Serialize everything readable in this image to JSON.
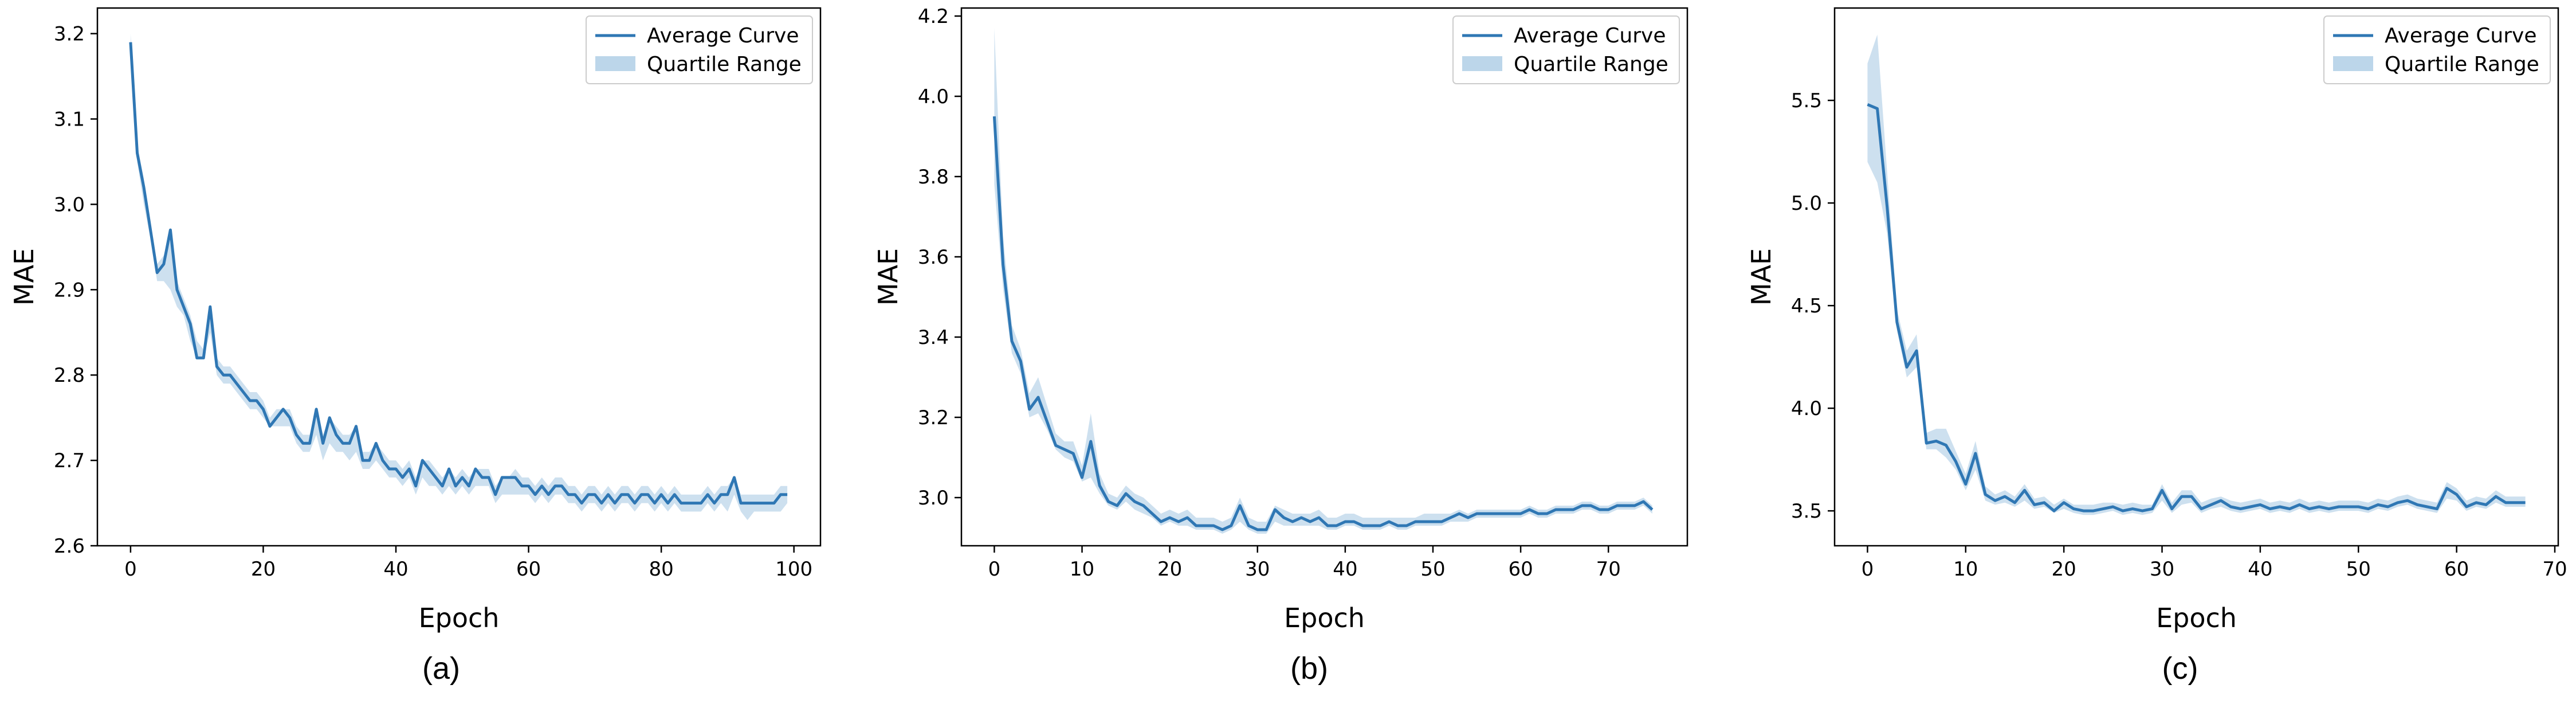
{
  "chart_data": [
    {
      "type": "line",
      "caption": "(a)",
      "xlabel": "Epoch",
      "ylabel": "MAE",
      "xlim": [
        -5,
        104
      ],
      "ylim": [
        2.6,
        3.23
      ],
      "xticks": [
        0,
        20,
        40,
        60,
        80,
        100
      ],
      "yticks": [
        2.6,
        2.7,
        2.8,
        2.9,
        3.0,
        3.1,
        3.2
      ],
      "ytick_labels": [
        "2.6",
        "2.7",
        "2.8",
        "2.9",
        "3.0",
        "3.1",
        "3.2"
      ],
      "legend": [
        "Average Curve",
        "Quartile Range"
      ],
      "legend_position": "top-right",
      "series": [
        {
          "name": "Average Curve",
          "x": [
            0,
            1,
            2,
            3,
            4,
            5,
            6,
            7,
            8,
            9,
            10,
            11,
            12,
            13,
            14,
            15,
            16,
            17,
            18,
            19,
            20,
            21,
            22,
            23,
            24,
            25,
            26,
            27,
            28,
            29,
            30,
            31,
            32,
            33,
            34,
            35,
            36,
            37,
            38,
            39,
            40,
            41,
            42,
            43,
            44,
            45,
            46,
            47,
            48,
            49,
            50,
            51,
            52,
            53,
            54,
            55,
            56,
            57,
            58,
            59,
            60,
            61,
            62,
            63,
            64,
            65,
            66,
            67,
            68,
            69,
            70,
            71,
            72,
            73,
            74,
            75,
            76,
            77,
            78,
            79,
            80,
            81,
            82,
            83,
            84,
            85,
            86,
            87,
            88,
            89,
            90,
            91,
            92,
            93,
            94,
            95,
            96,
            97,
            98,
            99
          ],
          "values": [
            3.19,
            3.06,
            3.02,
            2.97,
            2.92,
            2.93,
            2.97,
            2.9,
            2.88,
            2.86,
            2.82,
            2.82,
            2.88,
            2.81,
            2.8,
            2.8,
            2.79,
            2.78,
            2.77,
            2.77,
            2.76,
            2.74,
            2.75,
            2.76,
            2.75,
            2.73,
            2.72,
            2.72,
            2.76,
            2.72,
            2.75,
            2.73,
            2.72,
            2.72,
            2.74,
            2.7,
            2.7,
            2.72,
            2.7,
            2.69,
            2.69,
            2.68,
            2.69,
            2.67,
            2.7,
            2.69,
            2.68,
            2.67,
            2.69,
            2.67,
            2.68,
            2.67,
            2.69,
            2.68,
            2.68,
            2.66,
            2.68,
            2.68,
            2.68,
            2.67,
            2.67,
            2.66,
            2.67,
            2.66,
            2.67,
            2.67,
            2.66,
            2.66,
            2.65,
            2.66,
            2.66,
            2.65,
            2.66,
            2.65,
            2.66,
            2.66,
            2.65,
            2.66,
            2.66,
            2.65,
            2.66,
            2.65,
            2.66,
            2.65,
            2.65,
            2.65,
            2.65,
            2.66,
            2.65,
            2.66,
            2.66,
            2.68,
            2.65,
            2.65,
            2.65,
            2.65,
            2.65,
            2.65,
            2.66,
            2.66
          ],
          "q1": [
            3.19,
            3.05,
            3.0,
            2.96,
            2.91,
            2.91,
            2.9,
            2.88,
            2.87,
            2.84,
            2.82,
            2.82,
            2.85,
            2.8,
            2.79,
            2.79,
            2.78,
            2.77,
            2.76,
            2.76,
            2.75,
            2.74,
            2.74,
            2.74,
            2.74,
            2.72,
            2.71,
            2.71,
            2.73,
            2.7,
            2.72,
            2.71,
            2.71,
            2.7,
            2.71,
            2.69,
            2.69,
            2.7,
            2.69,
            2.68,
            2.68,
            2.67,
            2.68,
            2.66,
            2.68,
            2.67,
            2.67,
            2.66,
            2.67,
            2.66,
            2.67,
            2.66,
            2.67,
            2.67,
            2.67,
            2.65,
            2.66,
            2.66,
            2.66,
            2.66,
            2.66,
            2.65,
            2.66,
            2.65,
            2.66,
            2.66,
            2.65,
            2.65,
            2.64,
            2.65,
            2.65,
            2.64,
            2.65,
            2.64,
            2.65,
            2.65,
            2.64,
            2.65,
            2.65,
            2.64,
            2.65,
            2.64,
            2.65,
            2.64,
            2.64,
            2.64,
            2.64,
            2.65,
            2.64,
            2.65,
            2.64,
            2.66,
            2.64,
            2.63,
            2.64,
            2.64,
            2.64,
            2.64,
            2.64,
            2.65
          ],
          "q3": [
            3.2,
            3.07,
            3.03,
            2.98,
            2.93,
            2.94,
            2.97,
            2.91,
            2.89,
            2.87,
            2.84,
            2.83,
            2.88,
            2.82,
            2.81,
            2.81,
            2.8,
            2.79,
            2.78,
            2.78,
            2.77,
            2.75,
            2.76,
            2.76,
            2.76,
            2.74,
            2.73,
            2.73,
            2.76,
            2.73,
            2.75,
            2.74,
            2.73,
            2.73,
            2.74,
            2.71,
            2.71,
            2.72,
            2.71,
            2.7,
            2.7,
            2.69,
            2.7,
            2.68,
            2.7,
            2.7,
            2.69,
            2.68,
            2.69,
            2.68,
            2.69,
            2.68,
            2.69,
            2.69,
            2.69,
            2.67,
            2.68,
            2.68,
            2.69,
            2.68,
            2.68,
            2.67,
            2.68,
            2.67,
            2.68,
            2.68,
            2.67,
            2.67,
            2.66,
            2.67,
            2.67,
            2.66,
            2.67,
            2.66,
            2.67,
            2.67,
            2.66,
            2.67,
            2.67,
            2.66,
            2.67,
            2.66,
            2.67,
            2.66,
            2.66,
            2.66,
            2.66,
            2.67,
            2.66,
            2.67,
            2.67,
            2.68,
            2.66,
            2.66,
            2.66,
            2.66,
            2.66,
            2.66,
            2.67,
            2.67
          ]
        }
      ]
    },
    {
      "type": "line",
      "caption": "(b)",
      "xlabel": "Epoch",
      "ylabel": "MAE",
      "xlim": [
        -3.75,
        79
      ],
      "ylim": [
        2.88,
        4.22
      ],
      "xticks": [
        0,
        10,
        20,
        30,
        40,
        50,
        60,
        70
      ],
      "yticks": [
        3.0,
        3.2,
        3.4,
        3.6,
        3.8,
        4.0,
        4.2
      ],
      "ytick_labels": [
        "3.0",
        "3.2",
        "3.4",
        "3.6",
        "3.8",
        "4.0",
        "4.2"
      ],
      "legend": [
        "Average Curve",
        "Quartile Range"
      ],
      "legend_position": "top-right",
      "series": [
        {
          "name": "Average Curve",
          "x": [
            0,
            1,
            2,
            3,
            4,
            5,
            6,
            7,
            8,
            9,
            10,
            11,
            12,
            13,
            14,
            15,
            16,
            17,
            18,
            19,
            20,
            21,
            22,
            23,
            24,
            25,
            26,
            27,
            28,
            29,
            30,
            31,
            32,
            33,
            34,
            35,
            36,
            37,
            38,
            39,
            40,
            41,
            42,
            43,
            44,
            45,
            46,
            47,
            48,
            49,
            50,
            51,
            52,
            53,
            54,
            55,
            56,
            57,
            58,
            59,
            60,
            61,
            62,
            63,
            64,
            65,
            66,
            67,
            68,
            69,
            70,
            71,
            72,
            73,
            74,
            75
          ],
          "values": [
            3.95,
            3.58,
            3.39,
            3.34,
            3.22,
            3.25,
            3.19,
            3.13,
            3.12,
            3.11,
            3.05,
            3.14,
            3.03,
            2.99,
            2.98,
            3.01,
            2.99,
            2.98,
            2.96,
            2.94,
            2.95,
            2.94,
            2.95,
            2.93,
            2.93,
            2.93,
            2.92,
            2.93,
            2.98,
            2.93,
            2.92,
            2.92,
            2.97,
            2.95,
            2.94,
            2.95,
            2.94,
            2.95,
            2.93,
            2.93,
            2.94,
            2.94,
            2.93,
            2.93,
            2.93,
            2.94,
            2.93,
            2.93,
            2.94,
            2.94,
            2.94,
            2.94,
            2.95,
            2.96,
            2.95,
            2.96,
            2.96,
            2.96,
            2.96,
            2.96,
            2.96,
            2.97,
            2.96,
            2.96,
            2.97,
            2.97,
            2.97,
            2.98,
            2.98,
            2.97,
            2.97,
            2.98,
            2.98,
            2.98,
            2.99,
            2.97
          ],
          "q1": [
            3.78,
            3.52,
            3.36,
            3.31,
            3.2,
            3.21,
            3.17,
            3.12,
            3.1,
            3.09,
            3.04,
            3.05,
            3.01,
            2.98,
            2.97,
            2.99,
            2.97,
            2.96,
            2.95,
            2.93,
            2.94,
            2.93,
            2.93,
            2.92,
            2.92,
            2.92,
            2.91,
            2.92,
            2.94,
            2.92,
            2.91,
            2.91,
            2.94,
            2.93,
            2.93,
            2.93,
            2.93,
            2.93,
            2.92,
            2.92,
            2.93,
            2.93,
            2.92,
            2.92,
            2.92,
            2.93,
            2.92,
            2.92,
            2.93,
            2.93,
            2.93,
            2.93,
            2.94,
            2.94,
            2.94,
            2.95,
            2.95,
            2.95,
            2.95,
            2.95,
            2.95,
            2.96,
            2.95,
            2.95,
            2.96,
            2.96,
            2.96,
            2.97,
            2.97,
            2.96,
            2.96,
            2.97,
            2.97,
            2.97,
            2.98,
            2.96
          ],
          "q3": [
            4.17,
            3.65,
            3.43,
            3.37,
            3.26,
            3.3,
            3.23,
            3.16,
            3.14,
            3.14,
            3.08,
            3.21,
            3.06,
            3.01,
            3.0,
            3.03,
            3.01,
            3.0,
            2.98,
            2.96,
            2.97,
            2.96,
            2.97,
            2.95,
            2.95,
            2.95,
            2.94,
            2.95,
            3.0,
            2.95,
            2.94,
            2.94,
            2.98,
            2.97,
            2.96,
            2.96,
            2.96,
            2.97,
            2.95,
            2.95,
            2.96,
            2.96,
            2.95,
            2.95,
            2.95,
            2.95,
            2.95,
            2.95,
            2.95,
            2.96,
            2.96,
            2.96,
            2.96,
            2.97,
            2.96,
            2.97,
            2.97,
            2.97,
            2.97,
            2.97,
            2.97,
            2.98,
            2.97,
            2.97,
            2.98,
            2.98,
            2.98,
            2.99,
            2.99,
            2.98,
            2.98,
            2.99,
            2.99,
            2.99,
            3.0,
            2.98
          ]
        }
      ]
    },
    {
      "type": "line",
      "caption": "(c)",
      "xlabel": "Epoch",
      "ylabel": "MAE",
      "xlim": [
        -3.35,
        70.35
      ],
      "ylim": [
        3.33,
        5.95
      ],
      "xticks": [
        0,
        10,
        20,
        30,
        40,
        50,
        60,
        70
      ],
      "yticks": [
        3.5,
        4.0,
        4.5,
        5.0,
        5.5
      ],
      "ytick_labels": [
        "3.5",
        "4.0",
        "4.5",
        "5.0",
        "5.5"
      ],
      "legend": [
        "Average Curve",
        "Quartile Range"
      ],
      "legend_position": "top-right",
      "series": [
        {
          "name": "Average Curve",
          "x": [
            0,
            1,
            2,
            3,
            4,
            5,
            6,
            7,
            8,
            9,
            10,
            11,
            12,
            13,
            14,
            15,
            16,
            17,
            18,
            19,
            20,
            21,
            22,
            23,
            24,
            25,
            26,
            27,
            28,
            29,
            30,
            31,
            32,
            33,
            34,
            35,
            36,
            37,
            38,
            39,
            40,
            41,
            42,
            43,
            44,
            45,
            46,
            47,
            48,
            49,
            50,
            51,
            52,
            53,
            54,
            55,
            56,
            57,
            58,
            59,
            60,
            61,
            62,
            63,
            64,
            65,
            66,
            67
          ],
          "values": [
            5.48,
            5.46,
            4.98,
            4.42,
            4.2,
            4.28,
            3.83,
            3.84,
            3.82,
            3.74,
            3.63,
            3.78,
            3.58,
            3.55,
            3.57,
            3.54,
            3.6,
            3.53,
            3.54,
            3.5,
            3.54,
            3.51,
            3.5,
            3.5,
            3.51,
            3.52,
            3.5,
            3.51,
            3.5,
            3.51,
            3.6,
            3.51,
            3.57,
            3.57,
            3.51,
            3.53,
            3.55,
            3.52,
            3.51,
            3.52,
            3.53,
            3.51,
            3.52,
            3.51,
            3.53,
            3.51,
            3.52,
            3.51,
            3.52,
            3.52,
            3.52,
            3.51,
            3.53,
            3.52,
            3.54,
            3.55,
            3.53,
            3.52,
            3.51,
            3.61,
            3.58,
            3.52,
            3.54,
            3.53,
            3.57,
            3.54,
            3.54,
            3.54
          ],
          "q1": [
            5.2,
            5.1,
            4.85,
            4.38,
            4.15,
            4.2,
            3.8,
            3.8,
            3.76,
            3.7,
            3.6,
            3.7,
            3.55,
            3.53,
            3.54,
            3.52,
            3.55,
            3.51,
            3.52,
            3.49,
            3.51,
            3.49,
            3.48,
            3.48,
            3.49,
            3.5,
            3.48,
            3.49,
            3.48,
            3.49,
            3.55,
            3.49,
            3.53,
            3.54,
            3.49,
            3.51,
            3.52,
            3.5,
            3.49,
            3.5,
            3.51,
            3.49,
            3.5,
            3.49,
            3.51,
            3.49,
            3.5,
            3.49,
            3.5,
            3.5,
            3.5,
            3.49,
            3.51,
            3.5,
            3.52,
            3.53,
            3.51,
            3.5,
            3.49,
            3.56,
            3.55,
            3.5,
            3.52,
            3.51,
            3.54,
            3.52,
            3.52,
            3.52
          ],
          "q3": [
            5.68,
            5.82,
            5.15,
            4.48,
            4.28,
            4.36,
            3.88,
            3.9,
            3.9,
            3.79,
            3.68,
            3.84,
            3.62,
            3.58,
            3.6,
            3.57,
            3.63,
            3.56,
            3.57,
            3.53,
            3.56,
            3.53,
            3.53,
            3.53,
            3.54,
            3.54,
            3.53,
            3.54,
            3.53,
            3.53,
            3.63,
            3.54,
            3.6,
            3.6,
            3.54,
            3.56,
            3.57,
            3.55,
            3.54,
            3.55,
            3.56,
            3.54,
            3.55,
            3.54,
            3.56,
            3.54,
            3.55,
            3.54,
            3.55,
            3.55,
            3.55,
            3.54,
            3.56,
            3.55,
            3.57,
            3.58,
            3.56,
            3.55,
            3.54,
            3.64,
            3.61,
            3.55,
            3.57,
            3.56,
            3.6,
            3.57,
            3.57,
            3.57
          ]
        }
      ]
    }
  ],
  "colors": {
    "line": "#2f77b4",
    "band": "#bcd6ea",
    "axis": "#000000",
    "text": "#000000",
    "legend_border": "#cccccc"
  }
}
